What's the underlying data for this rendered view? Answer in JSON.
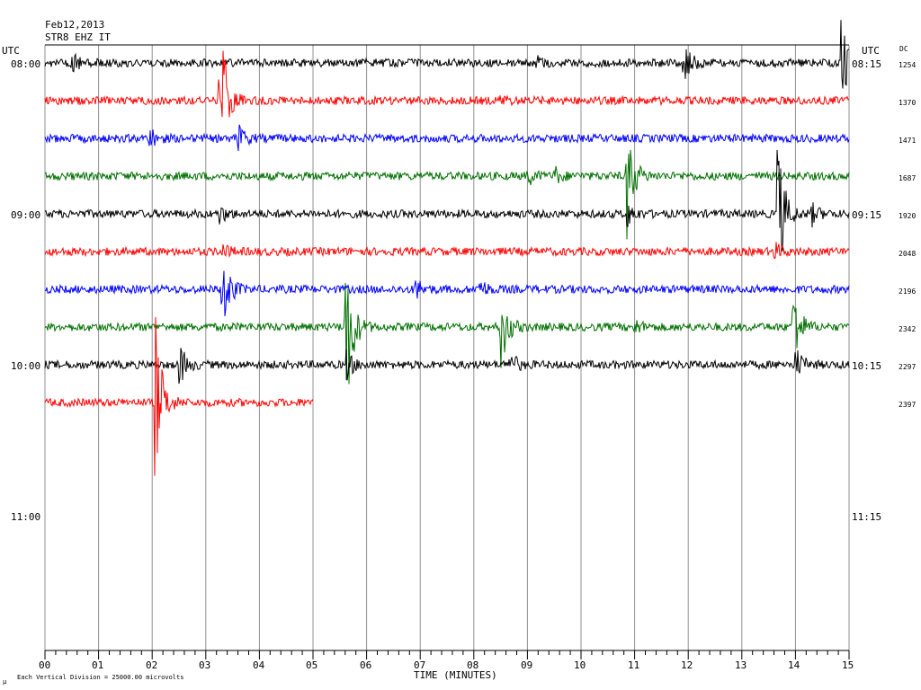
{
  "header": {
    "date": "Feb12,2013",
    "station": "STR8 EHZ IT",
    "utc_left": "UTC",
    "utc_right": "UTC",
    "dc_label": "DC"
  },
  "footer": {
    "x_axis_title": "TIME (MINUTES)",
    "scale_note": "Each Vertical Division = 25000.00 microvolts",
    "corner_mark": "µ"
  },
  "chart_data": {
    "type": "line",
    "title": "Feb12,2013",
    "subtitle": "STR8 EHZ IT",
    "xlabel": "TIME (MINUTES)",
    "ylabel": "",
    "xlim": [
      0,
      15
    ],
    "x_ticks": [
      "00",
      "01",
      "02",
      "03",
      "04",
      "05",
      "06",
      "07",
      "08",
      "09",
      "10",
      "11",
      "12",
      "13",
      "14",
      "15"
    ],
    "left_time_labels": [
      "08:00",
      "09:00",
      "10:00",
      "11:00"
    ],
    "right_time_labels": [
      "08:15",
      "09:15",
      "10:15",
      "11:15"
    ],
    "grid": "vertical",
    "trace_colors": [
      "#000000",
      "#ff0000",
      "#0000ff",
      "#007000"
    ],
    "traces": [
      {
        "dc": "1254",
        "color": "#000000",
        "end_minute": 15,
        "events": [
          {
            "t": 0.5,
            "amp": 14
          },
          {
            "t": 9.1,
            "amp": 10
          },
          {
            "t": 11.9,
            "amp": 30
          },
          {
            "t": 14.85,
            "amp": 50
          }
        ]
      },
      {
        "dc": "1370",
        "color": "#ff0000",
        "end_minute": 15,
        "events": [
          {
            "t": 3.25,
            "amp": 110
          },
          {
            "t": 8.5,
            "amp": 6
          }
        ]
      },
      {
        "dc": "1471",
        "color": "#0000ff",
        "end_minute": 15,
        "events": [
          {
            "t": 1.95,
            "amp": 12
          },
          {
            "t": 3.6,
            "amp": 16
          }
        ]
      },
      {
        "dc": "1687",
        "color": "#007000",
        "end_minute": 15,
        "events": [
          {
            "t": 9.0,
            "amp": 10
          },
          {
            "t": 9.5,
            "amp": 10
          },
          {
            "t": 10.85,
            "amp": 70
          }
        ]
      },
      {
        "dc": "1920",
        "color": "#000000",
        "end_minute": 15,
        "events": [
          {
            "t": 3.25,
            "amp": 10
          },
          {
            "t": 10.85,
            "amp": 15
          },
          {
            "t": 13.65,
            "amp": 105
          },
          {
            "t": 14.3,
            "amp": 12
          }
        ]
      },
      {
        "dc": "2048",
        "color": "#ff0000",
        "end_minute": 15,
        "events": [
          {
            "t": 3.3,
            "amp": 8
          },
          {
            "t": 13.6,
            "amp": 10
          }
        ]
      },
      {
        "dc": "2196",
        "color": "#0000ff",
        "end_minute": 15,
        "events": [
          {
            "t": 3.3,
            "amp": 60
          },
          {
            "t": 6.9,
            "amp": 14
          },
          {
            "t": 8.1,
            "amp": 12
          }
        ]
      },
      {
        "dc": "2342",
        "color": "#007000",
        "end_minute": 15,
        "events": [
          {
            "t": 5.6,
            "amp": 120
          },
          {
            "t": 8.5,
            "amp": 50
          },
          {
            "t": 11.0,
            "amp": 8
          },
          {
            "t": 13.95,
            "amp": 55
          }
        ]
      },
      {
        "dc": "2297",
        "color": "#000000",
        "end_minute": 15,
        "events": [
          {
            "t": 2.5,
            "amp": 25
          },
          {
            "t": 5.6,
            "amp": 20
          },
          {
            "t": 8.65,
            "amp": 18
          },
          {
            "t": 14.0,
            "amp": 20
          }
        ]
      },
      {
        "dc": "2397",
        "color": "#ff0000",
        "end_minute": 5,
        "events": [
          {
            "t": 2.05,
            "amp": 110
          }
        ]
      }
    ]
  }
}
